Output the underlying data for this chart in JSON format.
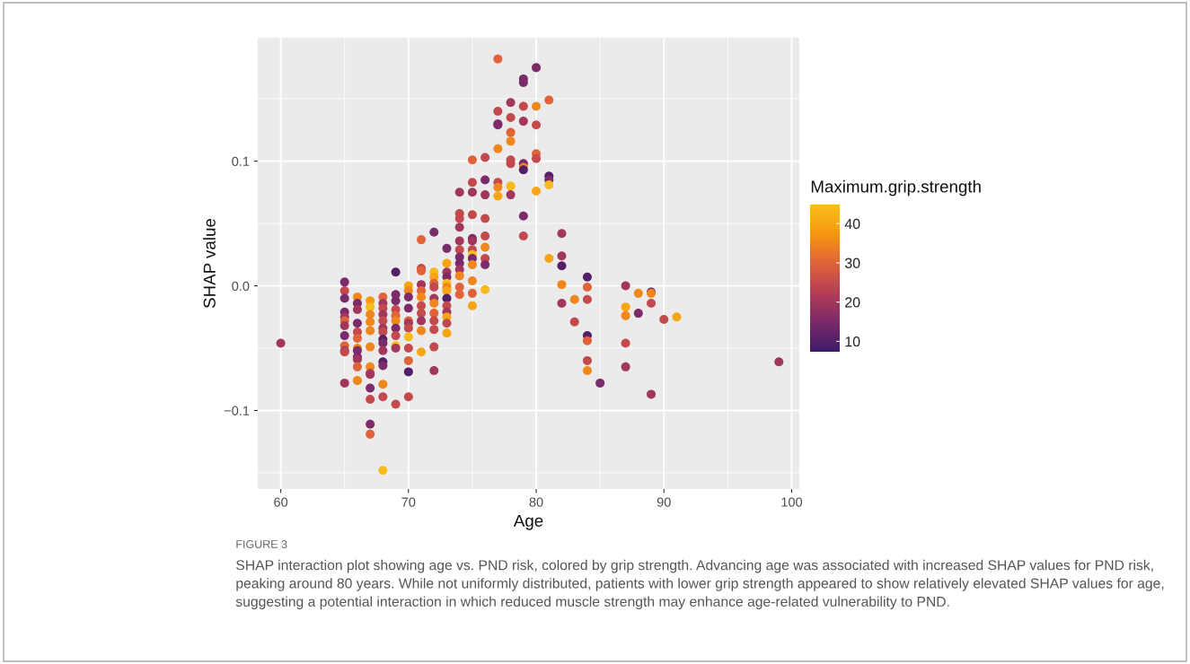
{
  "chart_data": {
    "type": "scatter",
    "xlabel": "Age",
    "ylabel": "SHAP value",
    "clabel": "Maximum.grip.strength",
    "x": [
      60,
      65,
      65,
      65,
      65,
      65,
      65,
      65,
      65,
      65,
      65,
      65,
      65,
      66,
      66,
      66,
      66,
      66,
      66,
      66,
      66,
      66,
      66,
      66,
      66,
      67,
      67,
      67,
      67,
      67,
      67,
      67,
      67,
      67,
      67,
      67,
      67,
      67,
      68,
      68,
      68,
      68,
      68,
      68,
      68,
      68,
      68,
      68,
      68,
      68,
      68,
      68,
      68,
      69,
      69,
      69,
      69,
      69,
      69,
      69,
      69,
      69,
      69,
      69,
      70,
      70,
      70,
      70,
      70,
      70,
      70,
      70,
      70,
      70,
      70,
      70,
      71,
      71,
      71,
      71,
      71,
      71,
      71,
      71,
      71,
      71,
      71,
      72,
      72,
      72,
      72,
      72,
      72,
      72,
      72,
      72,
      72,
      72,
      72,
      73,
      73,
      73,
      73,
      73,
      73,
      73,
      73,
      73,
      73,
      73,
      73,
      73,
      74,
      74,
      74,
      74,
      74,
      74,
      74,
      74,
      74,
      74,
      74,
      74,
      75,
      75,
      75,
      75,
      75,
      75,
      75,
      75,
      75,
      75,
      75,
      75,
      75,
      76,
      76,
      76,
      76,
      76,
      76,
      76,
      76,
      76,
      77,
      77,
      77,
      77,
      77,
      77,
      77,
      77,
      78,
      78,
      78,
      78,
      78,
      78,
      78,
      78,
      79,
      79,
      79,
      79,
      79,
      79,
      79,
      79,
      79,
      80,
      80,
      80,
      80,
      80,
      80,
      81,
      81,
      81,
      81,
      81,
      82,
      82,
      82,
      82,
      82,
      83,
      83,
      84,
      84,
      84,
      84,
      84,
      84,
      84,
      85,
      87,
      87,
      87,
      87,
      87,
      88,
      88,
      89,
      89,
      89,
      89,
      90,
      91,
      99
    ],
    "values": [
      -0.046,
      0.003,
      -0.004,
      -0.01,
      -0.021,
      -0.025,
      -0.028,
      -0.032,
      -0.04,
      -0.048,
      -0.052,
      -0.053,
      -0.078,
      -0.009,
      -0.014,
      -0.019,
      -0.03,
      -0.037,
      -0.042,
      -0.05,
      -0.052,
      -0.057,
      -0.059,
      -0.065,
      -0.076,
      -0.012,
      -0.017,
      -0.023,
      -0.029,
      -0.036,
      -0.049,
      -0.065,
      -0.07,
      -0.071,
      -0.082,
      -0.091,
      -0.111,
      -0.119,
      -0.009,
      -0.014,
      -0.018,
      -0.023,
      -0.028,
      -0.034,
      -0.037,
      -0.043,
      -0.046,
      -0.052,
      -0.061,
      -0.064,
      -0.079,
      -0.089,
      -0.148,
      0.011,
      -0.007,
      -0.012,
      -0.019,
      -0.024,
      -0.028,
      -0.034,
      -0.04,
      -0.048,
      -0.05,
      -0.095,
      0.0,
      -0.004,
      -0.009,
      -0.018,
      -0.028,
      -0.03,
      -0.034,
      -0.041,
      -0.05,
      -0.06,
      -0.069,
      -0.089,
      0.037,
      0.014,
      0.012,
      0.001,
      -0.004,
      -0.009,
      -0.016,
      -0.022,
      -0.028,
      -0.036,
      -0.053,
      0.043,
      0.011,
      0.007,
      0.002,
      -0.001,
      -0.01,
      -0.014,
      -0.022,
      -0.028,
      -0.035,
      -0.049,
      -0.068,
      0.03,
      0.018,
      0.011,
      0.007,
      0.002,
      -0.001,
      -0.004,
      -0.01,
      -0.016,
      -0.021,
      -0.025,
      -0.03,
      -0.038,
      0.075,
      0.058,
      0.054,
      0.047,
      0.036,
      0.029,
      0.023,
      0.018,
      0.013,
      0.008,
      -0.001,
      -0.007,
      0.101,
      0.083,
      0.075,
      0.057,
      0.038,
      0.036,
      0.029,
      0.025,
      0.022,
      0.017,
      0.004,
      -0.006,
      -0.016,
      0.103,
      0.085,
      0.073,
      0.054,
      0.04,
      0.031,
      0.022,
      0.017,
      -0.003,
      0.182,
      0.14,
      0.13,
      0.129,
      0.11,
      0.083,
      0.079,
      0.072,
      0.147,
      0.135,
      0.123,
      0.116,
      0.101,
      0.098,
      0.08,
      0.073,
      0.166,
      0.163,
      0.144,
      0.132,
      0.098,
      0.095,
      0.093,
      0.056,
      0.04,
      0.175,
      0.144,
      0.129,
      0.106,
      0.102,
      0.076,
      0.149,
      0.088,
      0.085,
      0.081,
      0.022,
      0.042,
      0.024,
      0.016,
      0.001,
      -0.014,
      -0.011,
      -0.029,
      0.007,
      -0.001,
      -0.011,
      -0.04,
      -0.044,
      -0.06,
      -0.068,
      -0.078,
      0.0,
      -0.017,
      -0.024,
      -0.046,
      -0.065,
      -0.006,
      -0.022,
      -0.005,
      -0.006,
      -0.014,
      -0.087,
      -0.027,
      -0.025,
      -0.061
    ],
    "cvalues": [
      20,
      15,
      25,
      15,
      15,
      20,
      30,
      20,
      15,
      30,
      20,
      25,
      20,
      35,
      15,
      20,
      15,
      25,
      30,
      35,
      15,
      15,
      20,
      30,
      35,
      38,
      44,
      35,
      35,
      35,
      35,
      35,
      25,
      20,
      15,
      25,
      15,
      30,
      30,
      20,
      25,
      20,
      25,
      20,
      25,
      10,
      15,
      20,
      10,
      15,
      35,
      25,
      44,
      10,
      15,
      15,
      25,
      30,
      35,
      15,
      25,
      44,
      20,
      25,
      40,
      35,
      15,
      15,
      30,
      20,
      25,
      44,
      25,
      30,
      10,
      25,
      30,
      25,
      30,
      20,
      30,
      35,
      25,
      25,
      20,
      35,
      40,
      15,
      44,
      40,
      30,
      25,
      20,
      35,
      30,
      25,
      25,
      25,
      20,
      15,
      40,
      20,
      15,
      44,
      35,
      40,
      10,
      25,
      20,
      40,
      25,
      40,
      20,
      25,
      25,
      20,
      20,
      25,
      15,
      15,
      20,
      35,
      30,
      30,
      30,
      25,
      20,
      25,
      15,
      20,
      25,
      44,
      15,
      35,
      35,
      30,
      40,
      25,
      15,
      20,
      25,
      25,
      35,
      25,
      15,
      44,
      30,
      25,
      20,
      15,
      35,
      25,
      35,
      40,
      20,
      25,
      30,
      35,
      25,
      25,
      44,
      20,
      15,
      15,
      25,
      20,
      15,
      35,
      10,
      15,
      25,
      15,
      35,
      25,
      30,
      25,
      40,
      30,
      10,
      15,
      44,
      40,
      20,
      20,
      10,
      35,
      20,
      35,
      25,
      10,
      30,
      25,
      10,
      30,
      25,
      35,
      15,
      20,
      40,
      35,
      25,
      20,
      35,
      15,
      10,
      35,
      25,
      20,
      25,
      40,
      20
    ],
    "xlim": [
      58.2,
      100.6
    ],
    "ylim": [
      -0.163,
      0.199
    ],
    "xticks": [
      60,
      70,
      80,
      90,
      100
    ],
    "yticks": [
      {
        "value": -0.1,
        "label": "−0.1"
      },
      {
        "value": 0,
        "label": "0.0"
      },
      {
        "value": 0.1,
        "label": "0.1"
      }
    ],
    "clim": [
      7.3,
      44.8
    ],
    "cticks": [
      10,
      20,
      30,
      40
    ],
    "grid": true,
    "marker": "circle",
    "annotations": [
      "FIGURE 3",
      "SHAP interaction plot showing age vs. PND risk, colored by grip strength. Advancing age was associated with increased SHAP values for PND risk, peaking around 80 years. While not uniformly distributed, patients with lower grip strength appeared to show relatively elevated SHAP values for age, suggesting a potential interaction in which reduced muscle strength may enhance age-related vulnerability to PND."
    ]
  }
}
